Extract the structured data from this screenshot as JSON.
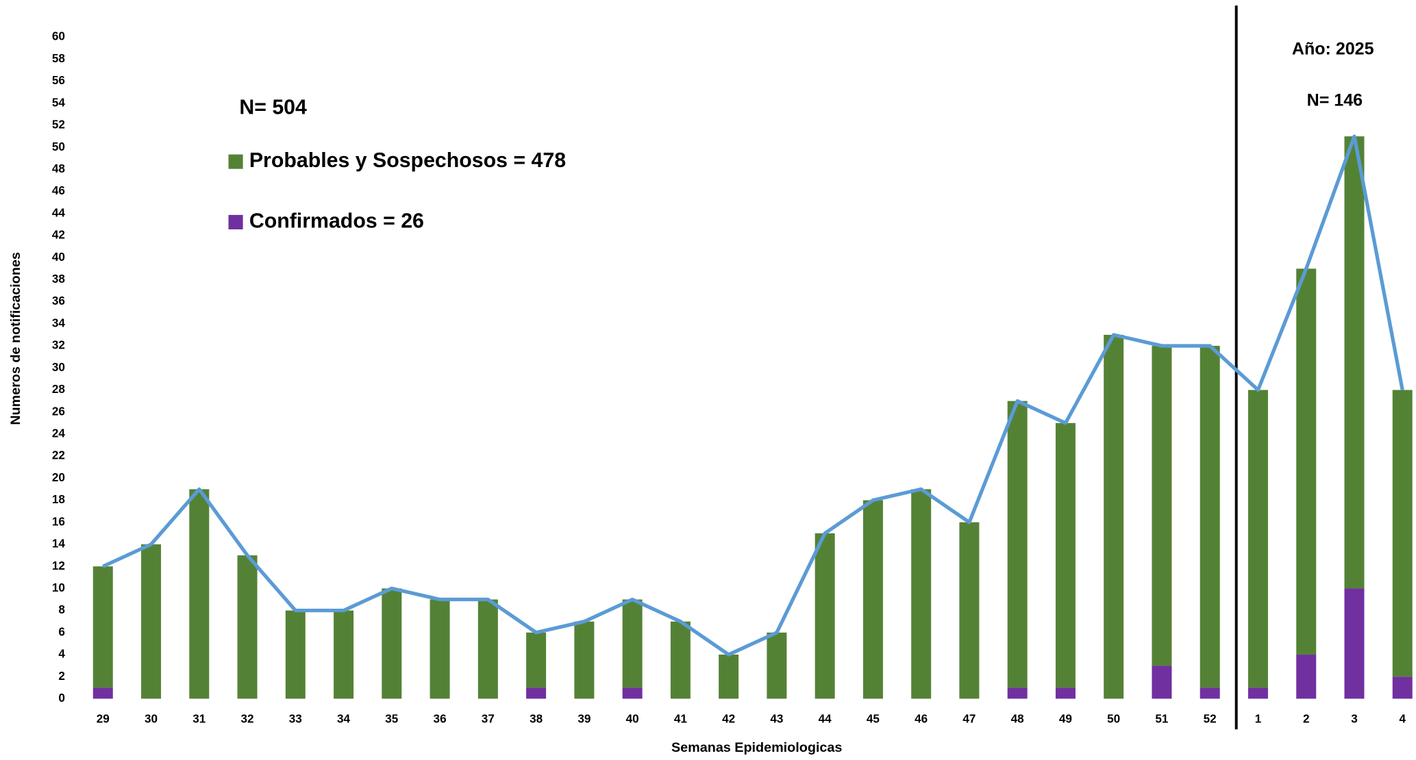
{
  "chart_data": {
    "type": "bar",
    "y_label": "Numeros de notificaciones",
    "x_label": "Semanas Epidemiologicas",
    "annotations": [
      "N= 504",
      "Año: 2025",
      "N= 146"
    ],
    "categories": [
      "29",
      "30",
      "31",
      "32",
      "33",
      "34",
      "35",
      "36",
      "37",
      "38",
      "39",
      "40",
      "41",
      "42",
      "43",
      "44",
      "45",
      "46",
      "47",
      "48",
      "49",
      "50",
      "51",
      "52",
      "1",
      "2",
      "3",
      "4"
    ],
    "series": [
      {
        "name": "Confirmados = 26",
        "color": "#7030a0",
        "values": [
          1,
          0,
          0,
          0,
          0,
          0,
          0,
          0,
          0,
          1,
          0,
          1,
          0,
          0,
          0,
          0,
          0,
          0,
          0,
          1,
          1,
          0,
          3,
          1,
          1,
          4,
          10,
          2
        ]
      },
      {
        "name": "Probables y Sospechosos = 478",
        "color": "#548235",
        "values": [
          11,
          14,
          19,
          13,
          8,
          8,
          10,
          9,
          9,
          5,
          7,
          8,
          7,
          4,
          6,
          15,
          18,
          19,
          16,
          26,
          24,
          33,
          29,
          31,
          27,
          35,
          41,
          26
        ]
      },
      {
        "type": "line",
        "color": "#5b9bd5",
        "values": [
          12,
          14,
          19,
          13,
          8,
          8,
          10,
          9,
          9,
          6,
          7,
          9,
          7,
          4,
          6,
          15,
          18,
          19,
          16,
          27,
          25,
          33,
          32,
          32,
          28,
          39,
          51,
          28
        ]
      }
    ],
    "stacked": true,
    "ylim": [
      0,
      60
    ],
    "yticks": [
      0,
      2,
      4,
      6,
      8,
      10,
      12,
      14,
      16,
      18,
      20,
      22,
      24,
      26,
      28,
      30,
      32,
      34,
      36,
      38,
      40,
      42,
      44,
      46,
      48,
      50,
      52,
      54,
      56,
      58,
      60
    ]
  }
}
